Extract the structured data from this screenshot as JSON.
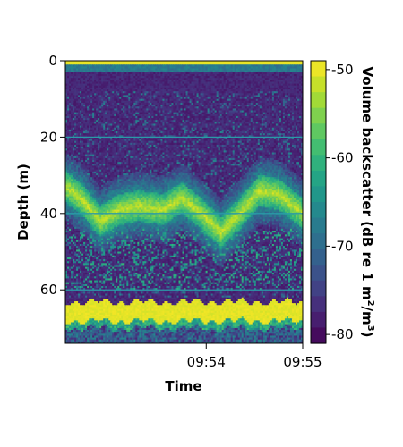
{
  "chart_data": {
    "type": "heatmap",
    "title": "",
    "xlabel": "Time",
    "ylabel": "Depth (m)",
    "x_ticks": [
      "09:54",
      "09:55"
    ],
    "x_tick_times_min": [
      1,
      2
    ],
    "x_range_min": [
      -0.46,
      2.0
    ],
    "y_ticks": [
      0,
      20,
      40,
      60
    ],
    "ylim": [
      0,
      74
    ],
    "y_inverted": true,
    "gridlines_y": [
      20,
      40,
      60
    ],
    "colorbar": {
      "label": "Volume backscatter (dB re 1 m²/m³)",
      "label_main": "Volume backscatter (dB re 1 m",
      "sup1": "2",
      "mid": "/m",
      "sup2": "3",
      "close": ")",
      "ticks": [
        -50,
        -60,
        -70,
        -80
      ],
      "range": [
        -81,
        -49
      ],
      "colormap": "viridis"
    },
    "features": {
      "surface_band_depth_m": [
        0,
        1.2
      ],
      "seabed_depth_m": 64,
      "fish_layer_depth_profile": [
        {
          "t": -0.46,
          "d": 33
        },
        {
          "t": -0.3,
          "d": 36
        },
        {
          "t": -0.1,
          "d": 42
        },
        {
          "t": 0.1,
          "d": 39
        },
        {
          "t": 0.3,
          "d": 38
        },
        {
          "t": 0.55,
          "d": 39
        },
        {
          "t": 0.75,
          "d": 36
        },
        {
          "t": 0.95,
          "d": 40
        },
        {
          "t": 1.15,
          "d": 45
        },
        {
          "t": 1.35,
          "d": 40
        },
        {
          "t": 1.55,
          "d": 34
        },
        {
          "t": 1.75,
          "d": 35
        },
        {
          "t": 2.0,
          "d": 40
        }
      ]
    }
  }
}
